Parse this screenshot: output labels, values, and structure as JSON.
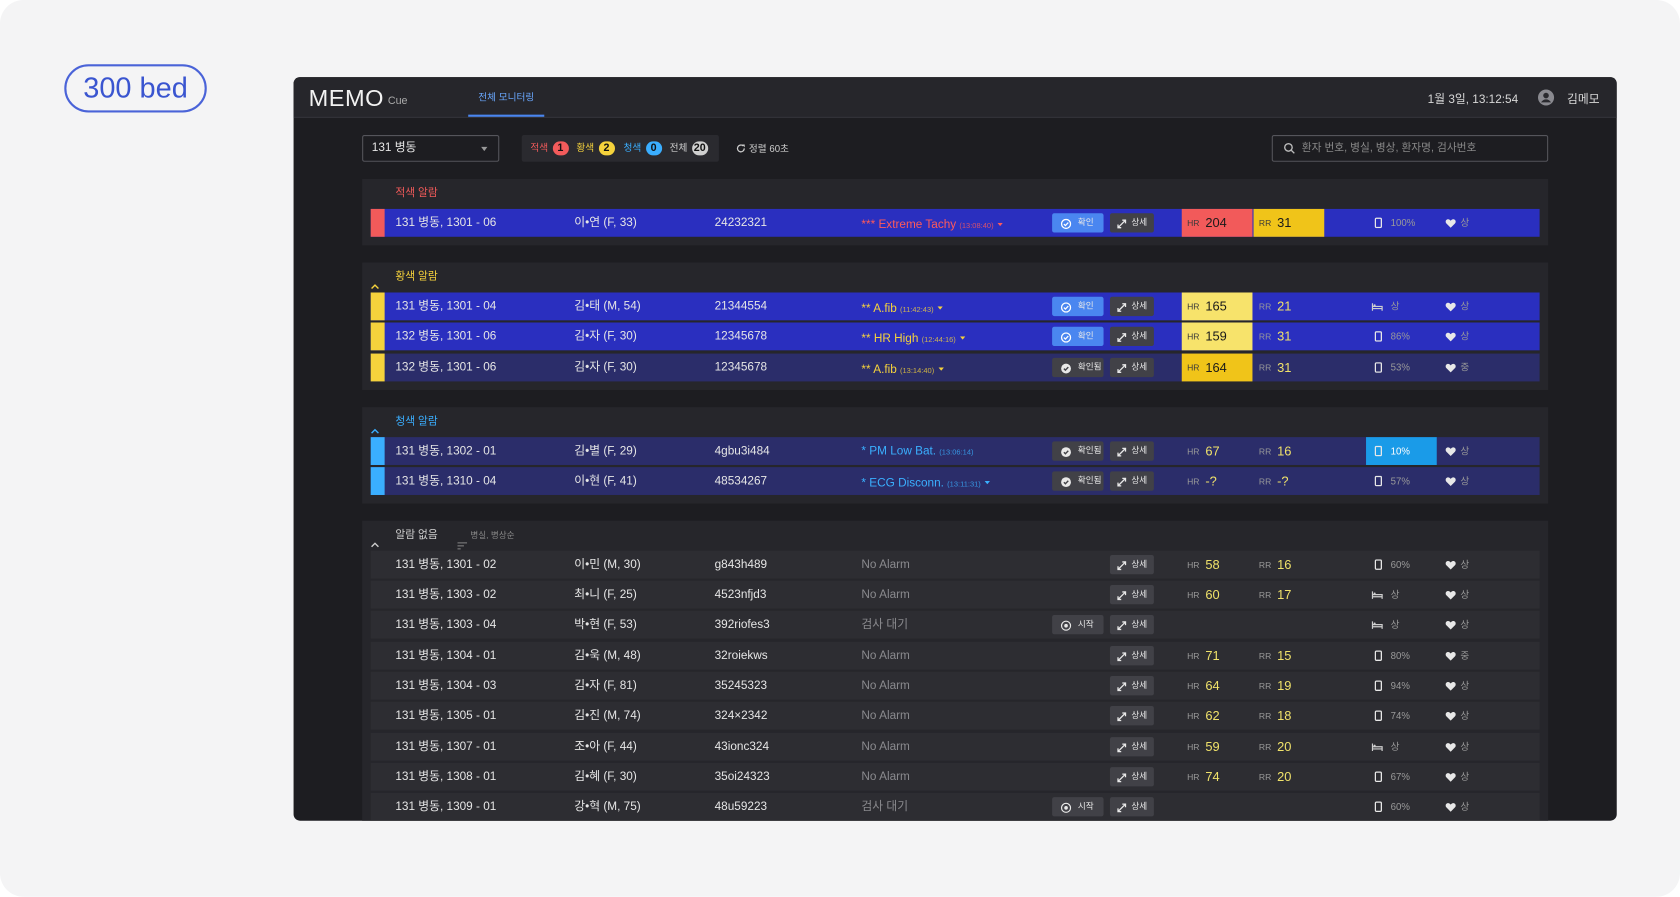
{
  "badge": "300 bed",
  "header": {
    "logo": "MEMO",
    "logo_sub": "Cue",
    "tab": "전체 모니터링",
    "datetime": "1월 3일, 13:12:54",
    "user": "김메모"
  },
  "toolbar": {
    "ward": "131 병동",
    "counts": [
      {
        "label": "적색",
        "count": 1,
        "color": "#f35b5b"
      },
      {
        "label": "황색",
        "count": 2,
        "color": "#f5d23c"
      },
      {
        "label": "청색",
        "count": 0,
        "color": "#3aaeff"
      },
      {
        "label": "전체",
        "count": 20,
        "color": "#cfcfcf"
      }
    ],
    "refresh": "정렬 60초",
    "search_placeholder": "환자 번호, 병실, 병상, 환자명, 검사번호"
  },
  "table": {
    "vital_labels": {
      "hr": "HR",
      "rr": "RR"
    },
    "detail_label": "상세",
    "groups": [
      {
        "title": "적색 알람",
        "color": "#f25a5a",
        "collapsible": false,
        "rows": [
          {
            "bed": "131 병동, 1301 - 06",
            "patient": "이•연 (F, 33)",
            "id": "24232321",
            "alarm": "*** Extreme Tachy",
            "time": "(13:08:40)",
            "dropdown": true,
            "alarm_color": "#ff5a5a",
            "row_color": "#2a2fbf",
            "action": "확인",
            "action_color": "#4a86f0",
            "action_icon": "check",
            "hr": 204,
            "hr_bg": "#f25a5a",
            "rr": 31,
            "rr_bg": "#f0c419",
            "device": "100%",
            "device_icon": "phone",
            "heart": "상"
          }
        ]
      },
      {
        "title": "황색 알람",
        "color": "#f5d23c",
        "collapsible": true,
        "rows": [
          {
            "bed": "131 병동, 1301 - 04",
            "patient": "김•태 (M, 54)",
            "id": "21344554",
            "alarm": "** A.fib",
            "time": "(11:42:43)",
            "dropdown": true,
            "alarm_color": "#f5d23c",
            "row_color": "#2a2fbf",
            "action": "확인",
            "action_color": "#4a86f0",
            "action_icon": "check",
            "hr": 165,
            "hr_bg": "#f7e36b",
            "rr": 21,
            "device": "상",
            "device_icon": "bed",
            "heart": "상"
          },
          {
            "bed": "132 병동, 1301 - 06",
            "patient": "김•자 (F, 30)",
            "id": "12345678",
            "alarm": "** HR High",
            "time": "(12:44:16)",
            "dropdown": true,
            "alarm_color": "#f5d23c",
            "row_color": "#2a2fbf",
            "action": "확인",
            "action_color": "#4a86f0",
            "action_icon": "check",
            "hr": 159,
            "hr_bg": "#f7e36b",
            "rr": 31,
            "device": "86%",
            "device_icon": "phone",
            "heart": "상"
          },
          {
            "bed": "132 병동, 1301 - 06",
            "patient": "김•자 (F, 30)",
            "id": "12345678",
            "alarm": "** A.fib",
            "time": "(13:14:40)",
            "dropdown": true,
            "alarm_color": "#f5d23c",
            "row_color": "#2b2d6a",
            "action": "확인됨",
            "action_color": "#414147",
            "action_icon": "check",
            "hr": 164,
            "hr_bg": "#f0c419",
            "rr": 31,
            "device": "53%",
            "device_icon": "phone",
            "heart": "중"
          }
        ]
      },
      {
        "title": "청색 알람",
        "color": "#3aaeff",
        "collapsible": true,
        "rows": [
          {
            "bed": "131 병동, 1302 - 01",
            "patient": "김•별 (F, 29)",
            "id": "4gbu3i484",
            "alarm": "* PM Low Bat.",
            "time": "(13:06:14)",
            "dropdown": false,
            "alarm_color": "#3ab0ff",
            "row_color": "#2b2d6a",
            "action": "확인됨",
            "action_color": "#414147",
            "action_icon": "check",
            "hr": 67,
            "rr": 16,
            "device": "10%",
            "device_icon": "phone",
            "device_bg": "#1a9be8",
            "heart": "상"
          },
          {
            "bed": "131 병동, 1310 - 04",
            "patient": "이•현 (F, 41)",
            "id": "48534267",
            "alarm": "* ECG Disconn.",
            "time": "(13:11:31)",
            "dropdown": true,
            "alarm_color": "#3ab0ff",
            "row_color": "#2b2d6a",
            "action": "확인됨",
            "action_color": "#414147",
            "action_icon": "check",
            "hr": "-?",
            "rr": "-?",
            "device": "57%",
            "device_icon": "phone",
            "heart": "상"
          }
        ]
      },
      {
        "title": "알람 없음",
        "color": "#cfcfcf",
        "collapsible": true,
        "sort": "병실, 병상순",
        "rows": [
          {
            "bed": "131 병동, 1301 - 02",
            "patient": "이•민 (M, 30)",
            "id": "g843h489",
            "alarm": "No Alarm",
            "alarm_color": "#8a8a8e",
            "row_color": "#2d2d32",
            "hr": 58,
            "rr": 16,
            "device": "60%",
            "device_icon": "phone",
            "heart": "상"
          },
          {
            "bed": "131 병동, 1303 - 02",
            "patient": "최•니 (F, 25)",
            "id": "4523nfjd3",
            "alarm": "No Alarm",
            "alarm_color": "#8a8a8e",
            "row_color": "#2d2d32",
            "hr": 60,
            "rr": 17,
            "device": "상",
            "device_icon": "bed",
            "heart": "상"
          },
          {
            "bed": "131 병동, 1303 - 04",
            "patient": "박•현 (F, 53)",
            "id": "392riofes3",
            "alarm": "검사 대기",
            "alarm_color": "#8a8a8e",
            "row_color": "#2d2d32",
            "action": "시작",
            "action_color": "#414147",
            "action_icon": "start",
            "device": "상",
            "device_icon": "bed",
            "heart": "상"
          },
          {
            "bed": "131 병동, 1304 - 01",
            "patient": "김•욱 (M, 48)",
            "id": "32roiekws",
            "alarm": "No Alarm",
            "alarm_color": "#8a8a8e",
            "row_color": "#2d2d32",
            "hr": 71,
            "rr": 15,
            "device": "80%",
            "device_icon": "phone",
            "heart": "중"
          },
          {
            "bed": "131 병동, 1304 - 03",
            "patient": "김•자 (F, 81)",
            "id": "35245323",
            "alarm": "No Alarm",
            "alarm_color": "#8a8a8e",
            "row_color": "#2d2d32",
            "hr": 64,
            "rr": 19,
            "device": "94%",
            "device_icon": "phone",
            "heart": "상"
          },
          {
            "bed": "131 병동, 1305 - 01",
            "patient": "김•진 (M, 74)",
            "id": "324×2342",
            "alarm": "No Alarm",
            "alarm_color": "#8a8a8e",
            "row_color": "#2d2d32",
            "hr": 62,
            "rr": 18,
            "device": "74%",
            "device_icon": "phone",
            "heart": "상"
          },
          {
            "bed": "131 병동, 1307 - 01",
            "patient": "조•아 (F, 44)",
            "id": "43ionc324",
            "alarm": "No Alarm",
            "alarm_color": "#8a8a8e",
            "row_color": "#2d2d32",
            "hr": 59,
            "rr": 20,
            "device": "상",
            "device_icon": "bed",
            "heart": "상"
          },
          {
            "bed": "131 병동, 1308 - 01",
            "patient": "김•혜 (F, 30)",
            "id": "35oi24323",
            "alarm": "No Alarm",
            "alarm_color": "#8a8a8e",
            "row_color": "#2d2d32",
            "hr": 74,
            "rr": 20,
            "device": "67%",
            "device_icon": "phone",
            "heart": "상"
          },
          {
            "bed": "131 병동, 1309 - 01",
            "patient": "강•혁 (M, 75)",
            "id": "48u59223",
            "alarm": "검사 대기",
            "alarm_color": "#8a8a8e",
            "row_color": "#2d2d32",
            "action": "시작",
            "action_color": "#414147",
            "action_icon": "start",
            "device": "60%",
            "device_icon": "phone",
            "heart": "상"
          }
        ]
      }
    ]
  }
}
